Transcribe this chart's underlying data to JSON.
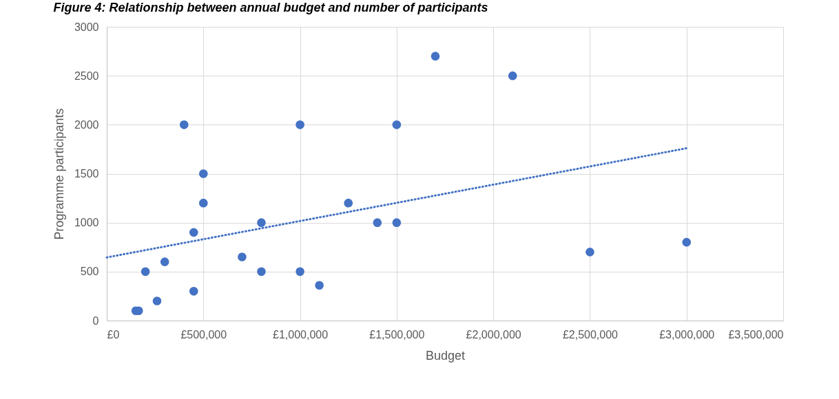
{
  "chart_data": {
    "type": "scatter",
    "title": "Figure 4: Relationship between annual budget and number of participants",
    "xlabel": "Budget",
    "ylabel": "Programme participants",
    "xlim": [
      0,
      3500000
    ],
    "xticks": [
      {
        "value": 0,
        "label": "£0"
      },
      {
        "value": 500000,
        "label": "£500,000"
      },
      {
        "value": 1000000,
        "label": "£1,000,000"
      },
      {
        "value": 1500000,
        "label": "£1,500,000"
      },
      {
        "value": 2000000,
        "label": "£2,000,000"
      },
      {
        "value": 2500000,
        "label": "£2,500,000"
      },
      {
        "value": 3000000,
        "label": "£3,000,000"
      },
      {
        "value": 3500000,
        "label": "£3,500,000"
      }
    ],
    "ylim": [
      0,
      3000
    ],
    "yticks": [
      0,
      500,
      1000,
      1500,
      2000,
      2500,
      3000
    ],
    "grid": true,
    "series": [
      {
        "type": "scatter",
        "color": "#4472c4",
        "marker": "circle",
        "x": [
          150000,
          165000,
          200000,
          260000,
          300000,
          400000,
          450000,
          450000,
          500000,
          500000,
          700000,
          800000,
          800000,
          1000000,
          1000000,
          1100000,
          1250000,
          1400000,
          1500000,
          1500000,
          1700000,
          2100000,
          2500000,
          3000000
        ],
        "values": [
          100,
          100,
          500,
          200,
          600,
          2000,
          900,
          300,
          1500,
          1200,
          650,
          1000,
          500,
          2000,
          500,
          360,
          1200,
          1000,
          2000,
          1000,
          2700,
          2500,
          700,
          800
        ]
      },
      {
        "type": "line",
        "color": "#4472c4",
        "line_style": "dotted",
        "x": [
          0,
          3000000
        ],
        "values": [
          645,
          1760
        ]
      }
    ]
  }
}
